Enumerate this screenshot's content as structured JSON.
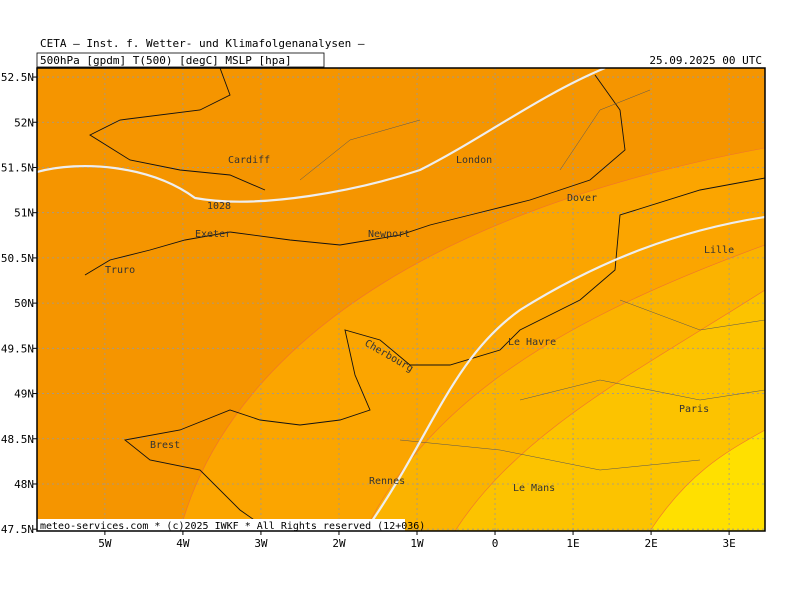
{
  "header": {
    "title": "CETA — Inst. f. Wetter- und Klimafolgenanalysen —",
    "fields": "500hPa [gpdm] T(500) [degC] MSLP [hpa]",
    "valid_time": "25.09.2025 00 UTC"
  },
  "map": {
    "lonlim": [
      -5.87,
      3.46
    ],
    "latlim": [
      47.48,
      52.6
    ],
    "lon_ticks": [
      {
        "value": -5,
        "label": "5W"
      },
      {
        "value": -4,
        "label": "4W"
      },
      {
        "value": -3,
        "label": "3W"
      },
      {
        "value": -2,
        "label": "2W"
      },
      {
        "value": -1,
        "label": "1W"
      },
      0,
      {
        "value": 1,
        "label": "1E"
      },
      {
        "value": 2,
        "label": "2E"
      },
      {
        "value": 3,
        "label": "3E"
      }
    ],
    "lat_ticks": [
      {
        "value": 52.5,
        "label": "52.5N"
      },
      {
        "value": 52,
        "label": "52N"
      },
      {
        "value": 51.5,
        "label": "51.5N"
      },
      {
        "value": 51,
        "label": "51N"
      },
      {
        "value": 50.5,
        "label": "50.5N"
      },
      {
        "value": 50,
        "label": "50N"
      },
      {
        "value": 49.5,
        "label": "49.5N"
      },
      {
        "value": 49,
        "label": "49N"
      },
      {
        "value": 48.5,
        "label": "48.5N"
      },
      {
        "value": 48,
        "label": "48N"
      },
      {
        "value": 47.5,
        "label": "47.5N"
      }
    ],
    "cities": [
      "Cardiff",
      "London",
      "Dover",
      "Exeter",
      "Newport",
      "Truro",
      "Lille",
      "Cherbourg",
      "Le Havre",
      "Paris",
      "Brest",
      "Rennes",
      "Le Mans"
    ],
    "isobar_label": "1028"
  },
  "footer": "meteo-services.com * (c)2025 IWKF * All Rights reserved (12+036)"
}
